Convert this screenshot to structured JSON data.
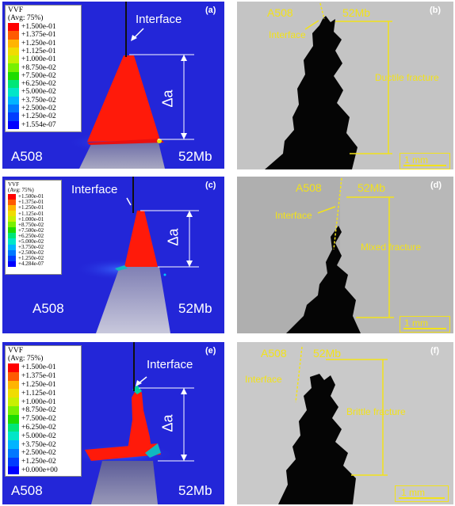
{
  "panels": {
    "a": {
      "label": "(a)",
      "left_material": "A508",
      "right_material": "52Mb",
      "interface": "Interface",
      "delta": "Δa"
    },
    "b": {
      "label": "(b)",
      "left_material": "A508",
      "right_material": "52Mb",
      "interface": "Interface",
      "fracture": "Ductile fracture",
      "scale": "1 mm"
    },
    "c": {
      "label": "(c)",
      "left_material": "A508",
      "right_material": "52Mb",
      "interface": "Interface",
      "delta": "Δa"
    },
    "d": {
      "label": "(d)",
      "left_material": "A508",
      "right_material": "52Mb",
      "interface": "Interface",
      "fracture": "Mixed fracture",
      "scale": "1 mm"
    },
    "e": {
      "label": "(e)",
      "left_material": "A508",
      "right_material": "52Mb",
      "interface": "Interface",
      "delta": "Δa"
    },
    "f": {
      "label": "(f)",
      "left_material": "A508",
      "right_material": "52Mb",
      "interface": "Interface",
      "fracture": "Brittle fracture",
      "scale": "1 mm"
    }
  },
  "legend_colors": [
    "#ff0000",
    "#ff5a00",
    "#ffb400",
    "#f0dc00",
    "#c8f000",
    "#78f000",
    "#1edc00",
    "#00e678",
    "#00e6c8",
    "#00b4ff",
    "#0078ff",
    "#003cff",
    "#0000ff"
  ],
  "legends": {
    "a": {
      "title1": "VVF",
      "title2": "(Avg: 75%)",
      "values": [
        "+1.500e-01",
        "+1.375e-01",
        "+1.250e-01",
        "+1.125e-01",
        "+1.000e-01",
        "+8.750e-02",
        "+7.500e-02",
        "+6.250e-02",
        "+5.000e-02",
        "+3.750e-02",
        "+2.500e-02",
        "+1.250e-02",
        "+1.554e-07"
      ]
    },
    "c": {
      "title1": "VVF",
      "title2": "(Avg: 75%)",
      "values": [
        "+1.500e-01",
        "+1.375e-01",
        "+1.250e-01",
        "+1.125e-01",
        "+1.000e-01",
        "+8.750e-02",
        "+7.500e-02",
        "+6.250e-02",
        "+5.000e-02",
        "+3.750e-02",
        "+2.500e-02",
        "+1.250e-02",
        "+4.284e-07"
      ]
    },
    "e": {
      "title1": "VVF",
      "title2": "(Avg: 75%)",
      "values": [
        "+1.500e-01",
        "+1.375e-01",
        "+1.250e-01",
        "+1.125e-01",
        "+1.000e-01",
        "+8.750e-02",
        "+7.500e-02",
        "+6.250e-02",
        "+5.000e-02",
        "+3.750e-02",
        "+2.500e-02",
        "+1.250e-02",
        "+0.000e+00"
      ]
    }
  }
}
